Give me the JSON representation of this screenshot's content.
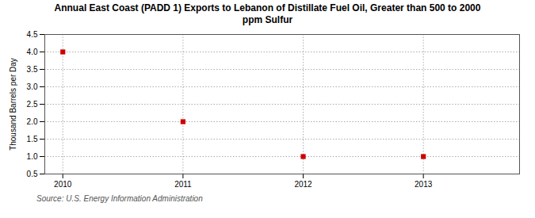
{
  "chart_data": {
    "type": "scatter",
    "title": "Annual East Coast (PADD 1) Exports to Lebanon of Distillate Fuel Oil, Greater than 500 to 2000\nppm Sulfur",
    "ylabel": "Thousand Barrels per Day",
    "source": "Source: U.S. Energy Information Administration",
    "x": [
      2010,
      2011,
      2012,
      2013
    ],
    "values": [
      4.0,
      2.0,
      1.0,
      1.0
    ],
    "color": "#cc0000",
    "marker": "square",
    "xlim": [
      2009.85,
      2013.8
    ],
    "xticks": [
      2010,
      2011,
      2012,
      2013
    ],
    "ylim": [
      0.5,
      4.5
    ],
    "yticks": [
      0.5,
      {
        "value": 1.0,
        "label": "1.0"
      },
      1.5,
      {
        "value": 2.0,
        "label": "2.0"
      },
      2.5,
      {
        "value": 3.0,
        "label": "3.0"
      },
      3.5,
      {
        "value": 4.0,
        "label": "4.0"
      },
      4.5
    ],
    "grid": true
  }
}
